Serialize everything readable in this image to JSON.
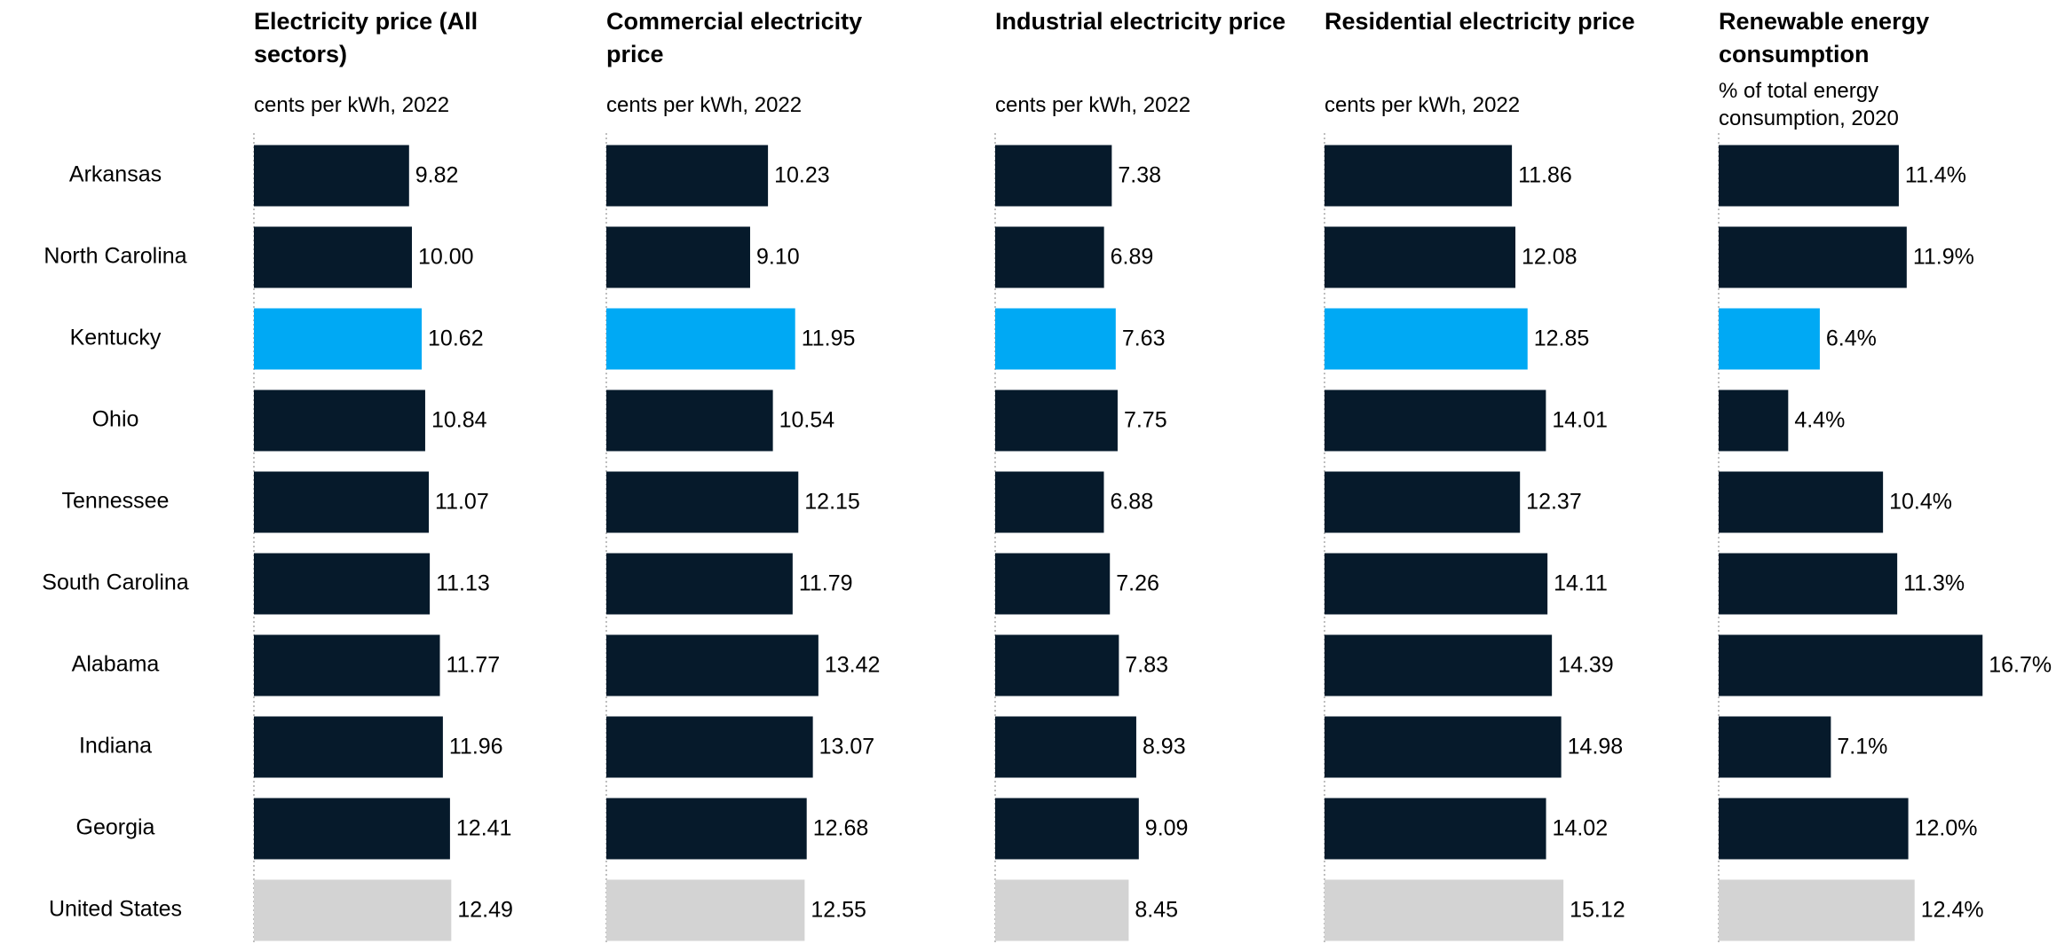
{
  "chart_data": [
    {
      "type": "bar",
      "orientation": "horizontal",
      "title": "Electricity price (All sectors)",
      "subtitle": "cents per kWh, 2022",
      "categories": [
        "Arkansas",
        "North Carolina",
        "Kentucky",
        "Ohio",
        "Tennessee",
        "South Carolina",
        "Alabama",
        "Indiana",
        "Georgia",
        "United States"
      ],
      "values": [
        9.82,
        10.0,
        10.62,
        10.84,
        11.07,
        11.13,
        11.77,
        11.96,
        12.41,
        12.49
      ],
      "value_labels": [
        "9.82",
        "10.00",
        "10.62",
        "10.84",
        "11.07",
        "11.13",
        "11.77",
        "11.96",
        "12.41",
        "12.49"
      ],
      "colors": [
        "#061a2b",
        "#061a2b",
        "#00a9f4",
        "#061a2b",
        "#061a2b",
        "#061a2b",
        "#061a2b",
        "#061a2b",
        "#061a2b",
        "#d3d3d3"
      ],
      "xlim": [
        0,
        20
      ]
    },
    {
      "type": "bar",
      "orientation": "horizontal",
      "title": "Commercial electricity price",
      "subtitle": "cents per kWh, 2022",
      "values": [
        10.23,
        9.1,
        11.95,
        10.54,
        12.15,
        11.79,
        13.42,
        13.07,
        12.68,
        12.55
      ],
      "value_labels": [
        "10.23",
        "9.10",
        "11.95",
        "10.54",
        "12.15",
        "11.79",
        "13.42",
        "13.07",
        "12.68",
        "12.55"
      ],
      "colors": [
        "#061a2b",
        "#061a2b",
        "#00a9f4",
        "#061a2b",
        "#061a2b",
        "#061a2b",
        "#061a2b",
        "#061a2b",
        "#061a2b",
        "#d3d3d3"
      ],
      "xlim": [
        0,
        20
      ]
    },
    {
      "type": "bar",
      "orientation": "horizontal",
      "title": "Industrial electricity price",
      "subtitle": "cents per kWh, 2022",
      "values": [
        7.38,
        6.89,
        7.63,
        7.75,
        6.88,
        7.26,
        7.83,
        8.93,
        9.09,
        8.45
      ],
      "value_labels": [
        "7.38",
        "6.89",
        "7.63",
        "7.75",
        "6.88",
        "7.26",
        "7.83",
        "8.93",
        "9.09",
        "8.45"
      ],
      "colors": [
        "#061a2b",
        "#061a2b",
        "#00a9f4",
        "#061a2b",
        "#061a2b",
        "#061a2b",
        "#061a2b",
        "#061a2b",
        "#061a2b",
        "#d3d3d3"
      ],
      "xlim": [
        0,
        20
      ]
    },
    {
      "type": "bar",
      "orientation": "horizontal",
      "title": "Residential electricity price",
      "subtitle": "cents per kWh, 2022",
      "values": [
        11.86,
        12.08,
        12.85,
        14.01,
        12.37,
        14.11,
        14.39,
        14.98,
        14.02,
        15.12
      ],
      "value_labels": [
        "11.86",
        "12.08",
        "12.85",
        "14.01",
        "12.37",
        "14.11",
        "14.39",
        "14.98",
        "14.02",
        "15.12"
      ],
      "colors": [
        "#061a2b",
        "#061a2b",
        "#00a9f4",
        "#061a2b",
        "#061a2b",
        "#061a2b",
        "#061a2b",
        "#061a2b",
        "#061a2b",
        "#d3d3d3"
      ],
      "xlim": [
        0,
        20
      ]
    },
    {
      "type": "bar",
      "orientation": "horizontal",
      "title": "Renewable energy consumption",
      "subtitle": "% of total energy consumption, 2020",
      "values": [
        11.4,
        11.9,
        6.4,
        4.4,
        10.4,
        11.3,
        16.7,
        7.1,
        12.0,
        12.4
      ],
      "value_labels": [
        "11.4%",
        "11.9%",
        "6.4%",
        "4.4%",
        "10.4%",
        "11.3%",
        "16.7%",
        "7.1%",
        "12.0%",
        "12.4%"
      ],
      "colors": [
        "#061a2b",
        "#061a2b",
        "#00a9f4",
        "#061a2b",
        "#061a2b",
        "#061a2b",
        "#061a2b",
        "#061a2b",
        "#061a2b",
        "#d3d3d3"
      ],
      "xlim": [
        0,
        20
      ]
    }
  ]
}
